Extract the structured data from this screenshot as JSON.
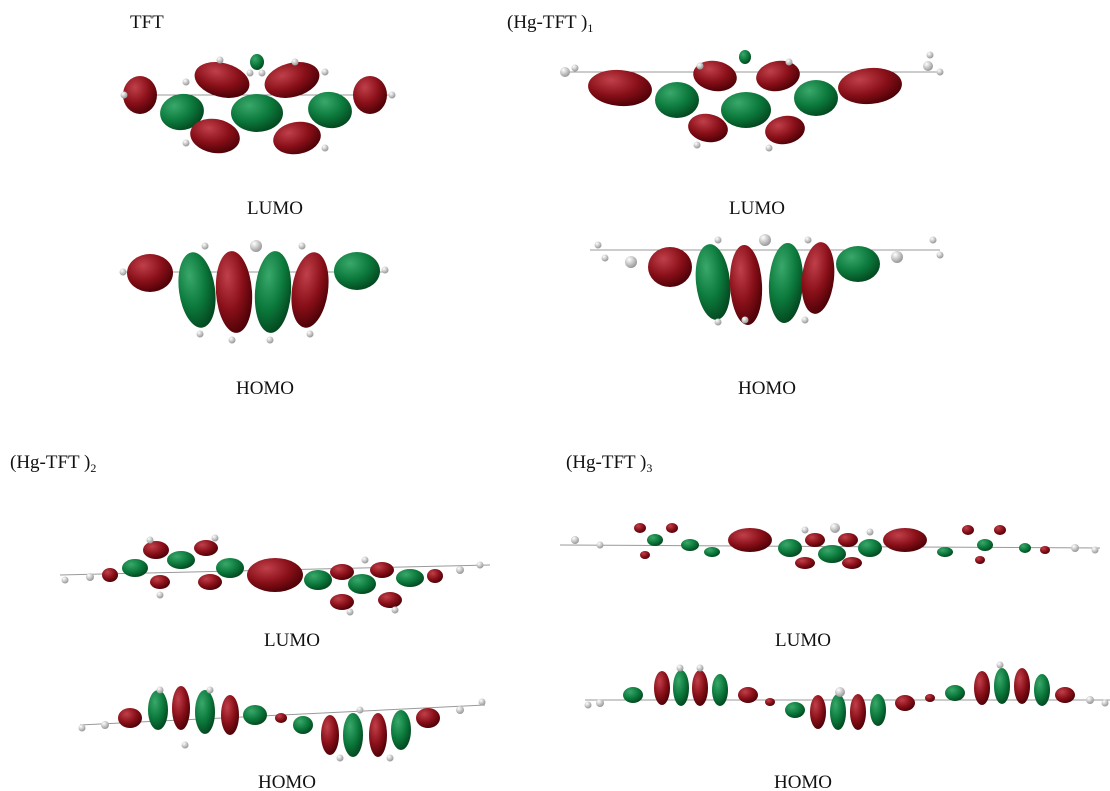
{
  "panels": [
    {
      "title": "TFT",
      "subscript": null,
      "lumo_label": "LUMO",
      "homo_label": "HOMO"
    },
    {
      "title": "(Hg-TFT )",
      "subscript": "1",
      "lumo_label": "LUMO",
      "homo_label": "HOMO"
    },
    {
      "title": "(Hg-TFT )",
      "subscript": "2",
      "lumo_label": "LUMO",
      "homo_label": "HOMO"
    },
    {
      "title": "(Hg-TFT )",
      "subscript": "3",
      "lumo_label": "LUMO",
      "homo_label": "HOMO"
    }
  ]
}
